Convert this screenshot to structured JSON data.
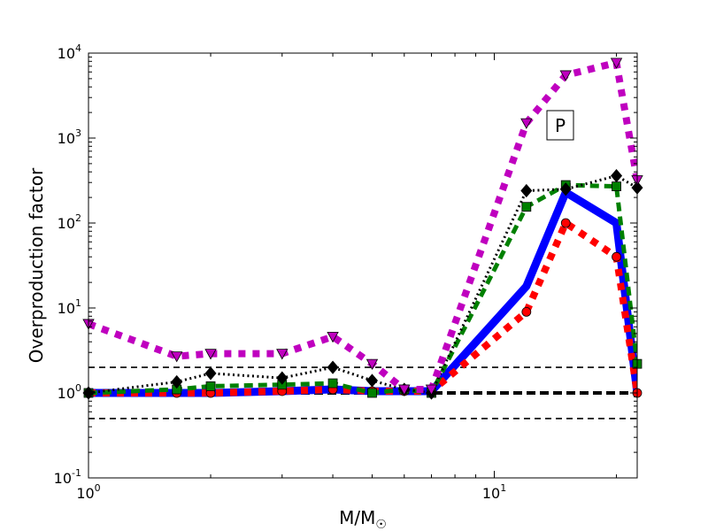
{
  "chart_data": {
    "type": "line",
    "xlabel": "M/M",
    "xlabel_sub": "☉",
    "ylabel": "Overproduction factor",
    "xscale": "log",
    "yscale": "log",
    "xlim": [
      1,
      22.5
    ],
    "ylim": [
      0.1,
      10000
    ],
    "x_ticks": [
      {
        "value": 1,
        "base": "10",
        "exp": "0"
      },
      {
        "value": 10,
        "base": "10",
        "exp": "1"
      }
    ],
    "y_ticks": [
      {
        "value": 0.1,
        "base": "10",
        "exp": "-1"
      },
      {
        "value": 1,
        "base": "10",
        "exp": "0"
      },
      {
        "value": 10,
        "base": "10",
        "exp": "1"
      },
      {
        "value": 100,
        "base": "10",
        "exp": "2"
      },
      {
        "value": 1000,
        "base": "10",
        "exp": "3"
      },
      {
        "value": 10000,
        "base": "10",
        "exp": "4"
      }
    ],
    "reference_lines": [
      {
        "y": 2.0,
        "style": "dashed-thin"
      },
      {
        "y": 1.0,
        "style": "dashed-thick"
      },
      {
        "y": 0.5,
        "style": "dashed-thin"
      }
    ],
    "annotation": "P",
    "series": [
      {
        "color": "#0000ff",
        "style": "solid",
        "marker": "none",
        "x": [
          1,
          1.65,
          2,
          3,
          4,
          5,
          6,
          7,
          12,
          15,
          20,
          22.5
        ],
        "y": [
          1.0,
          1.0,
          1.0,
          1.05,
          1.1,
          1.05,
          1.05,
          1.05,
          18,
          230,
          100,
          1.0
        ]
      },
      {
        "color": "#ff0000",
        "style": "dotted",
        "marker": "circle",
        "x": [
          1,
          1.65,
          2,
          3,
          4,
          5,
          6,
          7,
          12,
          15,
          20,
          22.5
        ],
        "y": [
          1.0,
          1.0,
          1.0,
          1.05,
          1.1,
          1.05,
          1.05,
          1.05,
          9,
          100,
          40,
          1.0
        ]
      },
      {
        "color": "#008000",
        "style": "dashed",
        "marker": "square",
        "x": [
          1,
          1.65,
          2,
          3,
          4,
          5,
          6,
          7,
          12,
          15,
          20,
          22.5
        ],
        "y": [
          1.0,
          1.1,
          1.2,
          1.25,
          1.3,
          1.0,
          1.1,
          1.0,
          155,
          280,
          270,
          2.2
        ]
      },
      {
        "color": "#000000",
        "style": "dotted-thin",
        "marker": "diamond",
        "x": [
          1,
          1.65,
          2,
          3,
          4,
          5,
          6,
          7,
          12,
          15,
          20,
          22.5
        ],
        "y": [
          1.0,
          1.35,
          1.7,
          1.5,
          2.0,
          1.4,
          1.1,
          1.0,
          240,
          250,
          360,
          260
        ]
      },
      {
        "color": "#bf00bf",
        "style": "dotted",
        "marker": "triangle-down",
        "x": [
          1,
          1.65,
          2,
          3,
          4,
          5,
          6,
          7,
          12,
          15,
          20,
          22.5
        ],
        "y": [
          6.5,
          2.7,
          2.9,
          2.9,
          4.6,
          2.2,
          1.1,
          1.1,
          1500,
          5500,
          7700,
          320
        ]
      }
    ]
  }
}
